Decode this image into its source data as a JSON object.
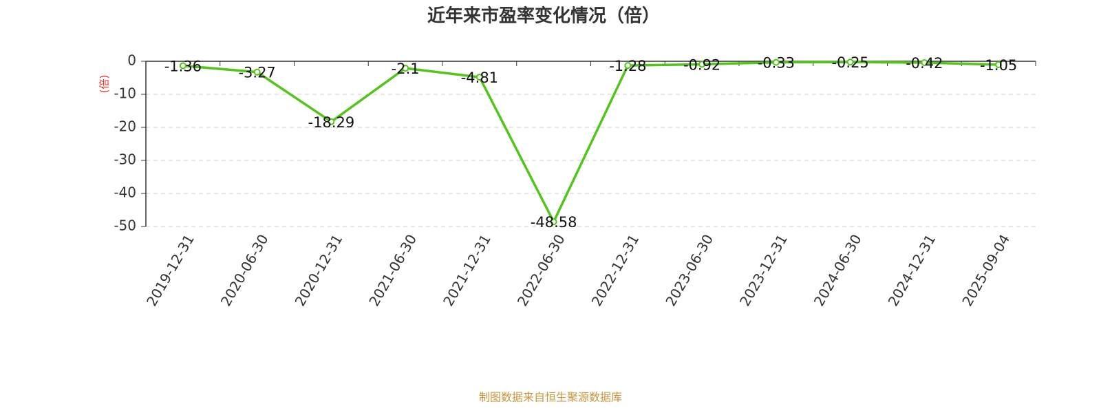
{
  "chart_data": {
    "type": "line",
    "title": "近年来市盈率变化情况（倍）",
    "y_label": "(倍)",
    "source": "制图数据来自恒生聚源数据库",
    "categories": [
      "2019-12-31",
      "2020-06-30",
      "2020-12-31",
      "2021-06-30",
      "2021-12-31",
      "2022-06-30",
      "2022-12-31",
      "2023-06-30",
      "2023-12-31",
      "2024-06-30",
      "2024-12-31",
      "2025-09-04"
    ],
    "values": [
      -1.36,
      -3.27,
      -18.29,
      -2.1,
      -4.81,
      -48.58,
      -1.28,
      -0.92,
      -0.33,
      -0.25,
      -0.42,
      -1.05
    ],
    "color": "#52c41a",
    "ylim": [
      -50,
      0
    ],
    "yticks": [
      0,
      -10,
      -20,
      -30,
      -40,
      -50
    ],
    "grid": true
  }
}
